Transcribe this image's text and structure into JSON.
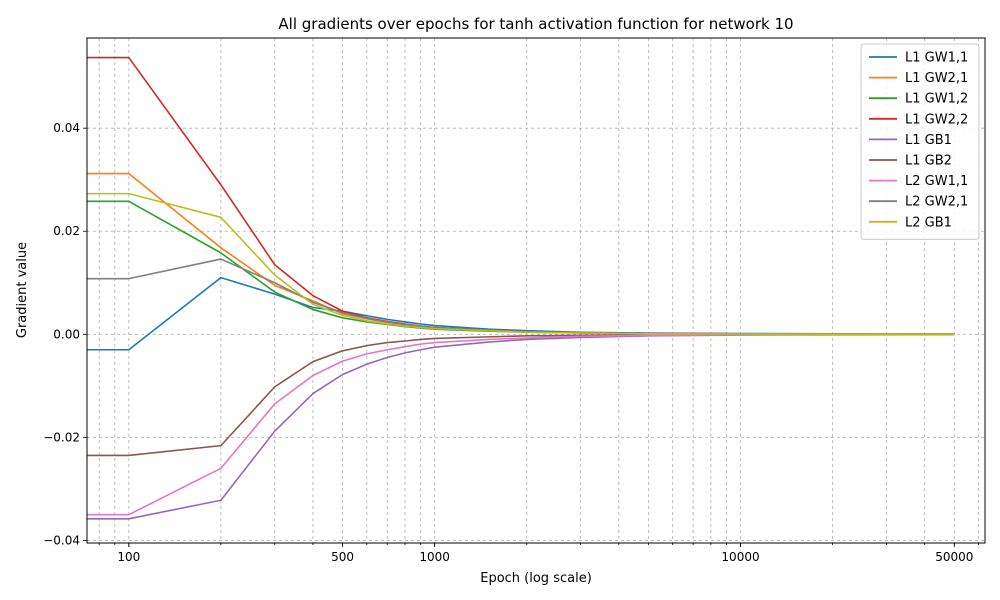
{
  "chart_data": {
    "type": "line",
    "title": "All gradients over epochs for tanh activation function for network 10",
    "xlabel": "Epoch (log scale)",
    "ylabel": "Gradient value",
    "xscale": "log",
    "xlim": [
      73,
      63000
    ],
    "ylim": [
      -0.0405,
      0.0575
    ],
    "xticks": [
      100,
      500,
      1000,
      10000,
      50000
    ],
    "xtick_labels": [
      "100",
      "500",
      "1000",
      "10000",
      "50000"
    ],
    "yticks": [
      -0.04,
      -0.02,
      0.0,
      0.02,
      0.04
    ],
    "ytick_labels": [
      "−0.04",
      "−0.02",
      "0.00",
      "0.02",
      "0.04"
    ],
    "grid": true,
    "legend_position": "top-right",
    "x": [
      1,
      100,
      200,
      300,
      400,
      500,
      600,
      700,
      800,
      900,
      1000,
      1500,
      2000,
      3000,
      5000,
      10000,
      20000,
      50000
    ],
    "series": [
      {
        "name": "L1 GW1,1",
        "color": "#1f77b4",
        "values": [
          -0.003,
          -0.003,
          0.011,
          0.0078,
          0.0052,
          0.0045,
          0.0036,
          0.0029,
          0.0024,
          0.002,
          0.0017,
          0.001,
          0.0007,
          0.0004,
          0.00025,
          0.00015,
          0.0001,
          5e-05
        ]
      },
      {
        "name": "L1 GW2,1",
        "color": "#ff7f0e",
        "values": [
          0.0312,
          0.0312,
          0.0168,
          0.0095,
          0.0065,
          0.004,
          0.003,
          0.0023,
          0.0018,
          0.0015,
          0.0013,
          0.0007,
          0.0005,
          0.0003,
          0.00015,
          0.0001,
          5e-05,
          2e-05
        ]
      },
      {
        "name": "L1 GW1,2",
        "color": "#2ca02c",
        "values": [
          0.0258,
          0.0258,
          0.0158,
          0.0082,
          0.0048,
          0.0032,
          0.0024,
          0.0019,
          0.0015,
          0.0012,
          0.001,
          0.0006,
          0.0004,
          0.00025,
          0.00012,
          8e-05,
          4e-05,
          2e-05
        ]
      },
      {
        "name": "L1 GW2,2",
        "color": "#d62728",
        "values": [
          0.0537,
          0.0537,
          0.029,
          0.0135,
          0.0075,
          0.0045,
          0.0032,
          0.0025,
          0.002,
          0.0016,
          0.0013,
          0.0008,
          0.0005,
          0.0003,
          0.00015,
          0.0001,
          5e-05,
          2e-05
        ]
      },
      {
        "name": "L1 GB1",
        "color": "#9467bd",
        "values": [
          -0.0358,
          -0.0358,
          -0.0322,
          -0.0188,
          -0.0115,
          -0.0078,
          -0.0058,
          -0.0045,
          -0.0036,
          -0.003,
          -0.0025,
          -0.0015,
          -0.001,
          -0.0006,
          -0.0003,
          -0.00015,
          -0.0001,
          -5e-05
        ]
      },
      {
        "name": "L1 GB2",
        "color": "#8c564b",
        "values": [
          -0.0235,
          -0.0235,
          -0.0216,
          -0.0102,
          -0.0053,
          -0.0032,
          -0.0022,
          -0.0016,
          -0.0013,
          -0.001,
          -0.0008,
          -0.0005,
          -0.0003,
          -0.0002,
          -0.0001,
          -5e-05,
          -3e-05,
          -1e-05
        ]
      },
      {
        "name": "L2 GW1,1",
        "color": "#e377c2",
        "values": [
          -0.035,
          -0.035,
          -0.026,
          -0.0135,
          -0.008,
          -0.0052,
          -0.0038,
          -0.003,
          -0.0024,
          -0.0019,
          -0.0016,
          -0.001,
          -0.0007,
          -0.0004,
          -0.0002,
          -0.0001,
          -5e-05,
          -2e-05
        ]
      },
      {
        "name": "L2 GW2,1",
        "color": "#7f7f7f",
        "values": [
          0.0108,
          0.0108,
          0.0146,
          0.01,
          0.0062,
          0.0042,
          0.0031,
          0.0024,
          0.0019,
          0.0016,
          0.0013,
          0.0008,
          0.0005,
          0.0003,
          0.00015,
          0.0001,
          5e-05,
          2e-05
        ]
      },
      {
        "name": "L2 GB1",
        "color": "#bcbd22",
        "values": [
          0.0273,
          0.0273,
          0.0227,
          0.0115,
          0.0058,
          0.0037,
          0.0026,
          0.002,
          0.0016,
          0.0013,
          0.0011,
          0.0007,
          0.0004,
          0.00025,
          0.00012,
          6e-05,
          3e-05,
          1e-05
        ]
      }
    ]
  }
}
